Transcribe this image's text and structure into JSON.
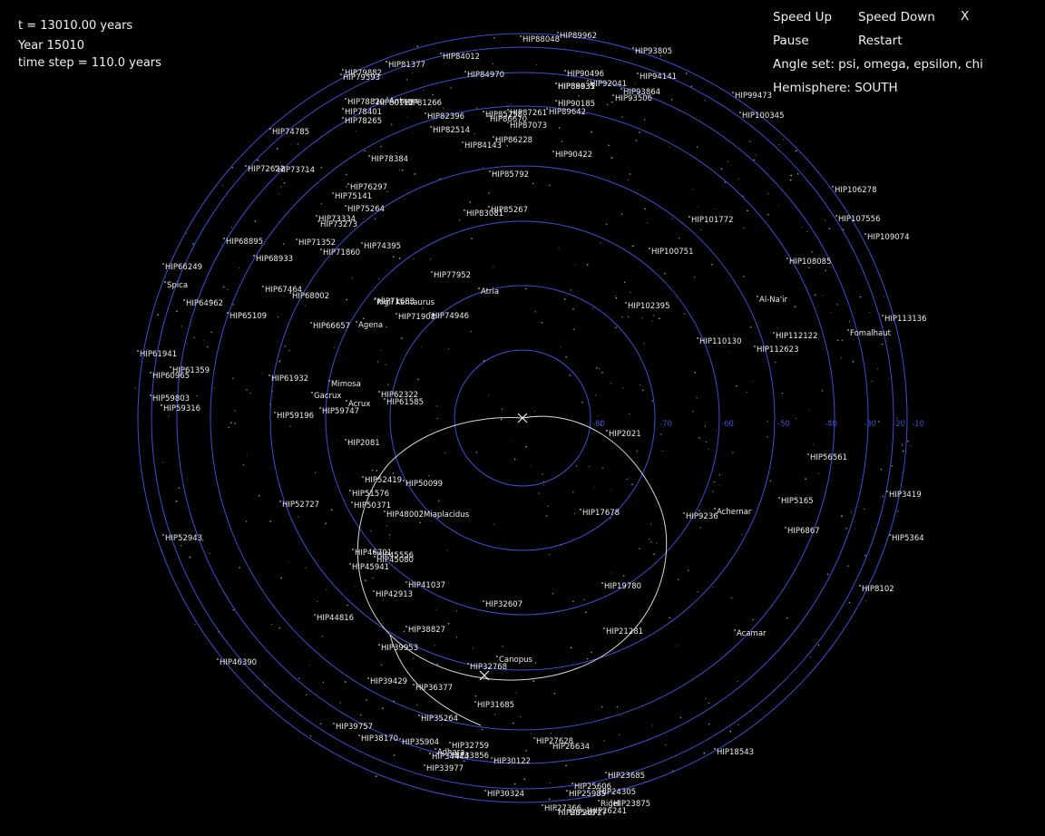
{
  "status": {
    "time": "t = 13010.00 years",
    "year": "Year 15010",
    "step": "time step = 110.0 years"
  },
  "controls": {
    "speed_up": "Speed Up",
    "speed_down": "Speed Down",
    "close": "X",
    "pause": "Pause",
    "restart": "Restart"
  },
  "info": {
    "angle_set": "Angle set: psi, omega, epsilon, chi",
    "hemisphere": "Hemisphere: SOUTH"
  },
  "colors": {
    "background": "#000000",
    "ring": "#3b4fd6",
    "path": "#d8d8d8",
    "label": "#ececec"
  },
  "declination_rings": [
    "-80",
    "-70",
    "-60",
    "-50",
    "-40",
    "-30",
    "-20",
    "-10"
  ],
  "markers": [
    "current-pole-marker",
    "path-start-marker"
  ],
  "stars": [
    "HIP88048",
    "HIP89962",
    "HIP93805",
    "HIP81377",
    "HIP84012",
    "HIP79882",
    "HIP79593",
    "HIP84970",
    "HIP90496",
    "HIP94141",
    "HIP88635",
    "HIP89931",
    "HIP92041",
    "HIP93864",
    "HIP93506",
    "HIP99473",
    "HIP78820",
    "HIP80112",
    "Antares",
    "HIP81266",
    "HIP78401",
    "HIP78265",
    "HIP82396",
    "HIP85258",
    "HIP87261",
    "HIP86670",
    "HIP87073",
    "HIP90185",
    "HIP89642",
    "HIP100345",
    "HIP74785",
    "HIP82514",
    "HIP86228",
    "HIP84143",
    "HIP90422",
    "HIP72622",
    "HIP73714",
    "HIP78384",
    "HIP85792",
    "HIP106278",
    "HIP76297",
    "HIP75141",
    "HIP85267",
    "HIP83081",
    "HIP75264",
    "HIP73334",
    "HIP73273",
    "HIP101772",
    "HIP107556",
    "HIP109074",
    "HIP68895",
    "HIP71352",
    "HIP71860",
    "HIP74395",
    "HIP100751",
    "HIP68933",
    "HIP108085",
    "HIP66249",
    "HIP77952",
    "Spica",
    "HIP67464",
    "HIP68002",
    "HIP64962",
    "HIP71683",
    "Rigil Kentaurus",
    "Atria",
    "Al-Na'ir",
    "HIP65109",
    "HIP71908",
    "HIP74946",
    "HIP102395",
    "HIP113136",
    "HIP66657",
    "Agena",
    "HIP112122",
    "Fomalhaut",
    "HIP110130",
    "HIP112623",
    "HIP61941",
    "HIP61359",
    "HIP60965",
    "HIP61932",
    "Mimosa",
    "Gacrux",
    "HIP62322",
    "HIP59803",
    "HIP59316",
    "Acrux",
    "HIP61585",
    "HIP59196",
    "HIP59747",
    "HIP2021",
    "HIP56561",
    "HIP2081",
    "HIP52419",
    "HIP50099",
    "HIP51576",
    "HIP3419",
    "HIP50371",
    "HIP5165",
    "HIP52727",
    "HIP48002",
    "Miaplacidus",
    "HIP17678",
    "HIP9236",
    "Achernar",
    "HIP6867",
    "HIP52943",
    "HIP5364",
    "HIP46701",
    "HIP45556",
    "HIP45080",
    "HIP45941",
    "HIP41037",
    "HIP19780",
    "HIP8102",
    "HIP42913",
    "HIP32607",
    "HIP44816",
    "HIP38827",
    "HIP21281",
    "Acamar",
    "HIP39953",
    "HIP46390",
    "Canopus",
    "HIP32768",
    "HIP39429",
    "HIP36377",
    "HIP31685",
    "HIP35264",
    "HIP39757",
    "HIP38170",
    "HIP35904",
    "HIP32759",
    "HIP27628",
    "HIP26634",
    "HIP18543",
    "Adhara",
    "HIP34444",
    "HIP33856",
    "HIP30122",
    "HIP33977",
    "HIP23685",
    "HIP25606",
    "HIP30324",
    "HIP25985",
    "HIP24305",
    "HIP23875",
    "HIP27366",
    "Rigel",
    "HIP26241",
    "HIP26548",
    "HIP26727"
  ]
}
